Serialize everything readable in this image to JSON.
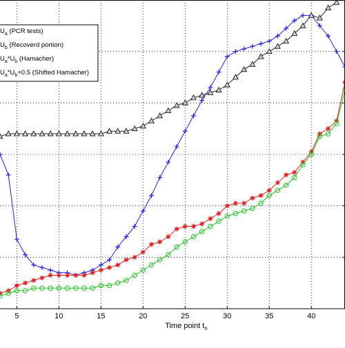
{
  "chart_data": {
    "type": "line",
    "title": "",
    "xlabel": "Time point t",
    "xlabel_subscript": "n",
    "ylabel": "",
    "xlim": [
      3,
      44
    ],
    "ylim": [
      0.0,
      1.2
    ],
    "grid": "dotted",
    "legend_placement": "top-left",
    "x_ticks": [
      5,
      10,
      15,
      20,
      25,
      30,
      35,
      40
    ],
    "x_tick_labels": [
      "5",
      "10",
      "15",
      "20",
      "25",
      "30",
      "35",
      "40"
    ],
    "x": [
      3,
      4,
      5,
      6,
      7,
      8,
      9,
      10,
      11,
      12,
      13,
      14,
      15,
      16,
      17,
      18,
      19,
      20,
      21,
      22,
      23,
      24,
      25,
      26,
      27,
      28,
      29,
      30,
      31,
      32,
      33,
      34,
      35,
      36,
      37,
      38,
      39,
      40,
      41,
      42,
      43,
      44
    ],
    "series": [
      {
        "name": "U_a (PCR tests)",
        "color": "#2020e0",
        "marker": "plus",
        "values": [
          0.6,
          0.52,
          0.27,
          0.21,
          0.17,
          0.16,
          0.15,
          0.14,
          0.14,
          0.13,
          0.14,
          0.15,
          0.17,
          0.19,
          0.24,
          0.28,
          0.32,
          0.38,
          0.44,
          0.51,
          0.57,
          0.63,
          0.69,
          0.75,
          0.81,
          0.86,
          0.92,
          0.98,
          1.0,
          1.01,
          1.02,
          1.03,
          1.04,
          1.06,
          1.09,
          1.12,
          1.14,
          1.14,
          1.1,
          1.06,
          1.0,
          0.94
        ]
      },
      {
        "name": "U_b (Recoverd portion)",
        "color": "#202020",
        "marker": "triangle",
        "values": [
          0.67,
          0.68,
          0.68,
          0.68,
          0.68,
          0.68,
          0.68,
          0.68,
          0.68,
          0.68,
          0.68,
          0.68,
          0.68,
          0.69,
          0.69,
          0.69,
          0.7,
          0.71,
          0.73,
          0.75,
          0.77,
          0.79,
          0.8,
          0.82,
          0.83,
          0.84,
          0.85,
          0.87,
          0.9,
          0.93,
          0.95,
          0.98,
          1.0,
          1.02,
          1.04,
          1.07,
          1.1,
          1.14,
          1.13,
          1.17,
          1.19,
          1.26
        ]
      },
      {
        "name": "U_a*U_b (Hamacher)",
        "color": "#e02020",
        "marker": "asterisk",
        "values": [
          0.06,
          0.07,
          0.09,
          0.1,
          0.11,
          0.12,
          0.13,
          0.13,
          0.13,
          0.13,
          0.13,
          0.14,
          0.15,
          0.16,
          0.17,
          0.19,
          0.2,
          0.22,
          0.25,
          0.26,
          0.28,
          0.31,
          0.32,
          0.32,
          0.33,
          0.35,
          0.37,
          0.4,
          0.41,
          0.41,
          0.43,
          0.44,
          0.46,
          0.49,
          0.52,
          0.53,
          0.57,
          0.61,
          0.68,
          0.7,
          0.73,
          0.88
        ]
      },
      {
        "name": "U_a*U_b+0.5 (Shifted Hamacher)",
        "color": "#20c020",
        "marker": "circle",
        "values": [
          0.05,
          0.06,
          0.07,
          0.07,
          0.08,
          0.08,
          0.08,
          0.08,
          0.08,
          0.08,
          0.08,
          0.08,
          0.09,
          0.09,
          0.1,
          0.11,
          0.13,
          0.15,
          0.17,
          0.19,
          0.21,
          0.24,
          0.26,
          0.28,
          0.3,
          0.32,
          0.34,
          0.36,
          0.37,
          0.38,
          0.39,
          0.41,
          0.44,
          0.46,
          0.48,
          0.51,
          0.56,
          0.6,
          0.67,
          0.68,
          0.72,
          0.85
        ]
      }
    ],
    "legend": [
      {
        "label": "U_a (PCR tests)",
        "main": "U",
        "sub": "a",
        "rest": " (PCR tests)"
      },
      {
        "label": "U_b (Recoverd portion)",
        "main": "U",
        "sub": "b",
        "rest": " (Recoverd portion)"
      },
      {
        "label": "U_a*U_b (Hamacher)",
        "main": "U",
        "sub": "a",
        "mid": "*U",
        "sub2": "b",
        "rest": " (Hamacher)"
      },
      {
        "label": "U_a*U_b+0.5 (Shifted Hamacher)",
        "main": "U",
        "sub": "a",
        "mid": "*U",
        "sub2": "b",
        "rest": "+0.5 (Shifted Hamacher)"
      }
    ]
  }
}
